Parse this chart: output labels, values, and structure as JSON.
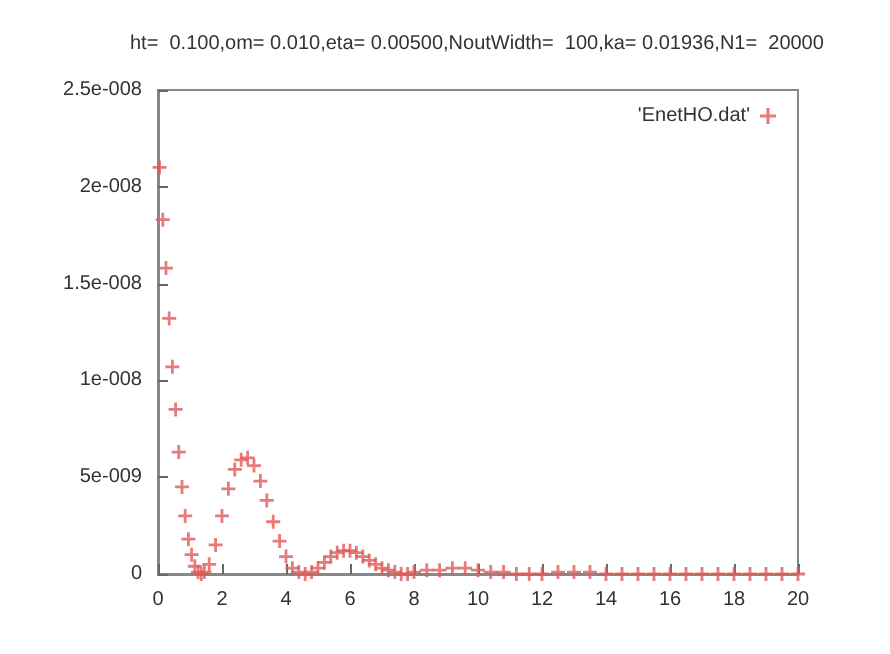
{
  "chart_data": {
    "type": "scatter",
    "title": "ht=  0.100,om= 0.010,eta= 0.00500,NoutWidth=  100,ka= 0.01936,N1=  20000",
    "marker": "cross",
    "legend": "top right",
    "grid": false,
    "xlim": [
      0,
      20
    ],
    "xticks": [
      0,
      2,
      4,
      6,
      8,
      10,
      12,
      14,
      16,
      18,
      20
    ],
    "ylim": [
      0,
      2.5e-08
    ],
    "yticks": [
      0,
      {
        "value": 5e-09,
        "label": "5e-009"
      },
      {
        "value": 1e-08,
        "label": "1e-008"
      },
      {
        "value": 1.5e-08,
        "label": "1.5e-008"
      },
      {
        "value": 2e-08,
        "label": "2e-008"
      },
      {
        "value": 2.5e-08,
        "label": "2.5e-008"
      }
    ],
    "series": [
      {
        "name": "'EnetHO.dat'",
        "color": "#e05a5a",
        "x": [
          0.05,
          0.15,
          0.25,
          0.35,
          0.45,
          0.55,
          0.65,
          0.75,
          0.85,
          0.95,
          1.05,
          1.15,
          1.25,
          1.35,
          1.45,
          1.6,
          1.8,
          2.0,
          2.2,
          2.4,
          2.6,
          2.8,
          3.0,
          3.2,
          3.4,
          3.6,
          3.8,
          4.0,
          4.2,
          4.4,
          4.6,
          4.8,
          5.0,
          5.2,
          5.4,
          5.6,
          5.8,
          6.0,
          6.2,
          6.4,
          6.6,
          6.8,
          7.0,
          7.2,
          7.4,
          7.6,
          7.8,
          8.0,
          8.4,
          8.8,
          9.2,
          9.6,
          10.0,
          10.4,
          10.8,
          11.2,
          11.6,
          12.0,
          12.5,
          13.0,
          13.5,
          14.0,
          14.5,
          15.0,
          15.5,
          16.0,
          16.5,
          17.0,
          17.5,
          18.0,
          18.5,
          19.0,
          19.5,
          20.0
        ],
        "values": [
          2.1e-08,
          1.83e-08,
          1.58e-08,
          1.32e-08,
          1.07e-08,
          8.5e-09,
          6.3e-09,
          4.5e-09,
          3e-09,
          1.8e-09,
          1e-09,
          4e-10,
          1e-10,
          0,
          1e-10,
          5e-10,
          1.5e-09,
          3e-09,
          4.4e-09,
          5.4e-09,
          5.9e-09,
          6e-09,
          5.6e-09,
          4.8e-09,
          3.8e-09,
          2.7e-09,
          1.7e-09,
          9e-10,
          3e-10,
          1e-10,
          0,
          1e-10,
          3e-10,
          6e-10,
          9e-10,
          1.1e-09,
          1.2e-09,
          1.2e-09,
          1.1e-09,
          9e-10,
          7e-10,
          5e-10,
          3e-10,
          2e-10,
          1e-10,
          0,
          0,
          1e-10,
          2e-10,
          2e-10,
          3e-10,
          3e-10,
          2e-10,
          1e-10,
          1e-10,
          0,
          0,
          0,
          1e-10,
          1e-10,
          1e-10,
          0,
          0,
          0,
          0,
          0,
          0,
          0,
          0,
          0,
          0,
          0,
          0,
          0
        ]
      }
    ]
  }
}
